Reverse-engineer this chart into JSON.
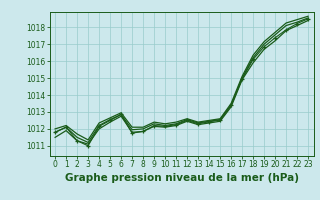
{
  "xlabel": "Graphe pression niveau de la mer (hPa)",
  "x": [
    0,
    1,
    2,
    3,
    4,
    5,
    6,
    7,
    8,
    9,
    10,
    11,
    12,
    13,
    14,
    15,
    16,
    17,
    18,
    19,
    20,
    21,
    22,
    23
  ],
  "bg_color": "#cce8ec",
  "grid_color": "#99cccc",
  "line_color": "#1a5c1a",
  "ylim": [
    1010.4,
    1018.9
  ],
  "xlim": [
    -0.5,
    23.5
  ],
  "yticks": [
    1011,
    1012,
    1013,
    1014,
    1015,
    1016,
    1017,
    1018
  ],
  "xticks": [
    0,
    1,
    2,
    3,
    4,
    5,
    6,
    7,
    8,
    9,
    10,
    11,
    12,
    13,
    14,
    15,
    16,
    17,
    18,
    19,
    20,
    21,
    22,
    23
  ],
  "xlabel_fontsize": 7.5,
  "tick_fontsize": 5.5,
  "smooth_line1": [
    1011.5,
    1011.9,
    1011.3,
    1011.1,
    1012.0,
    1012.4,
    1012.75,
    1011.8,
    1011.85,
    1012.15,
    1012.1,
    1012.2,
    1012.45,
    1012.25,
    1012.35,
    1012.45,
    1013.3,
    1014.9,
    1015.9,
    1016.7,
    1017.2,
    1017.8,
    1018.1,
    1018.4
  ],
  "smooth_line2": [
    1011.8,
    1012.1,
    1011.5,
    1011.2,
    1012.2,
    1012.55,
    1012.85,
    1011.95,
    1012.0,
    1012.3,
    1012.2,
    1012.3,
    1012.55,
    1012.35,
    1012.45,
    1012.55,
    1013.4,
    1015.0,
    1016.2,
    1017.0,
    1017.55,
    1018.1,
    1018.3,
    1018.55
  ],
  "smooth_line3": [
    1012.0,
    1012.2,
    1011.7,
    1011.35,
    1012.35,
    1012.65,
    1012.95,
    1012.1,
    1012.1,
    1012.4,
    1012.3,
    1012.4,
    1012.6,
    1012.4,
    1012.5,
    1012.6,
    1013.5,
    1015.1,
    1016.35,
    1017.15,
    1017.7,
    1018.25,
    1018.45,
    1018.65
  ],
  "marker_line": [
    1011.8,
    1012.1,
    1011.3,
    1011.0,
    1012.15,
    1012.5,
    1012.85,
    1011.75,
    1011.85,
    1012.2,
    1012.15,
    1012.25,
    1012.5,
    1012.3,
    1012.42,
    1012.52,
    1013.4,
    1014.95,
    1016.1,
    1016.85,
    1017.38,
    1017.85,
    1018.22,
    1018.5
  ]
}
